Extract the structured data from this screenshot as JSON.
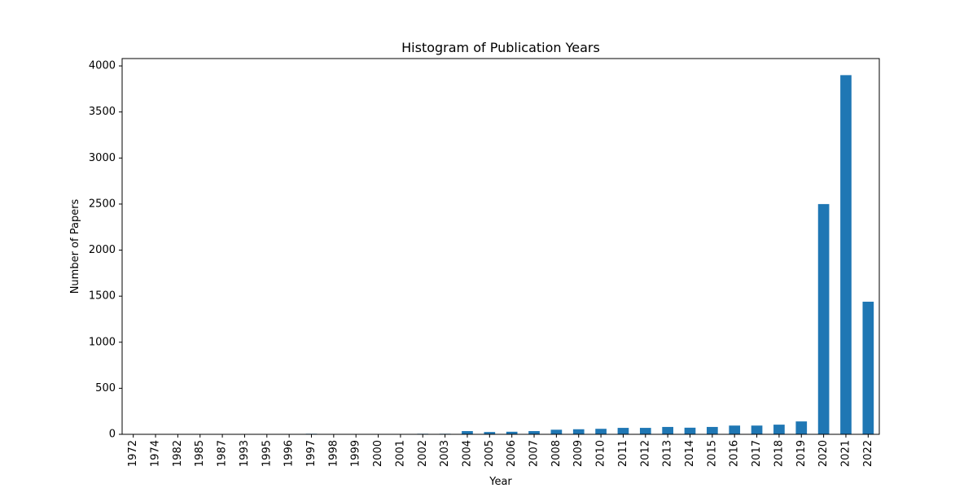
{
  "chart_data": {
    "type": "bar",
    "title": "Histogram of Publication Years",
    "xlabel": "Year",
    "ylabel": "Number of Papers",
    "categories": [
      "1972",
      "1974",
      "1982",
      "1985",
      "1987",
      "1993",
      "1995",
      "1996",
      "1997",
      "1998",
      "1999",
      "2000",
      "2001",
      "2002",
      "2003",
      "2004",
      "2005",
      "2006",
      "2007",
      "2008",
      "2009",
      "2010",
      "2011",
      "2012",
      "2013",
      "2014",
      "2015",
      "2016",
      "2017",
      "2018",
      "2019",
      "2020",
      "2021",
      "2022"
    ],
    "values": [
      1,
      1,
      1,
      1,
      1,
      1,
      1,
      1,
      6,
      1,
      1,
      1,
      1,
      6,
      6,
      35,
      25,
      28,
      35,
      50,
      55,
      60,
      70,
      70,
      80,
      72,
      80,
      95,
      95,
      105,
      140,
      2500,
      3900,
      1440
    ],
    "ylim": [
      0,
      4080
    ],
    "yticks": [
      0,
      500,
      1000,
      1500,
      2000,
      2500,
      3000,
      3500,
      4000
    ],
    "bar_color": "#1f77b4",
    "grid": false,
    "legend": "none"
  }
}
